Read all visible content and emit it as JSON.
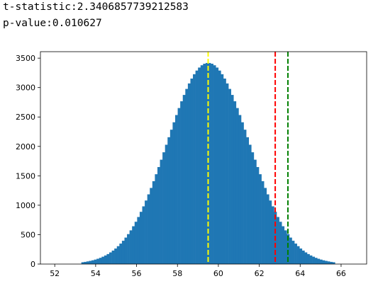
{
  "output_lines": [
    "t-statistic:2.3406857739212583",
    "p-value:0.010627"
  ],
  "chart_data": {
    "type": "histogram",
    "color": "#1f77b4",
    "bins": [
      53.3,
      53.424,
      53.548,
      53.672,
      53.796,
      53.92,
      54.044,
      54.168,
      54.292,
      54.416,
      54.54,
      54.664,
      54.788,
      54.912,
      55.036,
      55.16,
      55.284,
      55.408,
      55.532,
      55.656,
      55.78,
      55.904,
      56.028,
      56.152,
      56.276,
      56.4,
      56.524,
      56.648,
      56.772,
      56.896,
      57.02,
      57.144,
      57.268,
      57.392,
      57.516,
      57.64,
      57.764,
      57.888,
      58.012,
      58.136,
      58.26,
      58.384,
      58.508,
      58.632,
      58.756,
      58.88,
      59.004,
      59.128,
      59.252,
      59.376,
      59.5,
      59.624,
      59.748,
      59.872,
      59.996,
      60.12,
      60.244,
      60.368,
      60.492,
      60.616,
      60.74,
      60.864,
      60.988,
      61.112,
      61.236,
      61.36,
      61.484,
      61.608,
      61.732,
      61.856,
      61.98,
      62.104,
      62.228,
      62.352,
      62.476,
      62.6,
      62.724,
      62.848,
      62.972,
      63.096,
      63.22,
      63.344,
      63.468,
      63.592,
      63.716,
      63.84,
      63.964,
      64.088,
      64.212,
      64.336,
      64.46,
      64.584,
      64.708,
      64.832,
      64.956,
      65.08,
      65.204,
      65.328,
      65.452,
      65.576,
      65.7
    ],
    "values": [
      31,
      37,
      45,
      54,
      64,
      76,
      90,
      106,
      125,
      146,
      170,
      198,
      229,
      264,
      304,
      348,
      396,
      450,
      509,
      573,
      643,
      719,
      800,
      888,
      981,
      1080,
      1185,
      1294,
      1409,
      1527,
      1649,
      1774,
      1900,
      2028,
      2156,
      2284,
      2410,
      2533,
      2652,
      2767,
      2875,
      2977,
      3070,
      3153,
      3227,
      3289,
      3340,
      3379,
      3405,
      3418,
      3418,
      3405,
      3379,
      3340,
      3289,
      3227,
      3153,
      3070,
      2977,
      2875,
      2767,
      2652,
      2533,
      2410,
      2284,
      2156,
      2028,
      1900,
      1774,
      1649,
      1527,
      1409,
      1294,
      1185,
      1080,
      981,
      888,
      800,
      719,
      643,
      573,
      509,
      450,
      396,
      348,
      304,
      264,
      229,
      198,
      170,
      146,
      125,
      106,
      90,
      76,
      64,
      54,
      45,
      37,
      31
    ],
    "vlines": [
      {
        "x": 59.5,
        "color": "#ffff00"
      },
      {
        "x": 62.78,
        "color": "#ff0000"
      },
      {
        "x": 63.4,
        "color": "#008000"
      }
    ],
    "xlim": [
      51.3,
      67.25
    ],
    "ylim": [
      0,
      3610
    ],
    "xticks": [
      52,
      54,
      56,
      58,
      60,
      62,
      64,
      66
    ],
    "yticks": [
      0,
      500,
      1000,
      1500,
      2000,
      2500,
      3000,
      3500
    ]
  }
}
